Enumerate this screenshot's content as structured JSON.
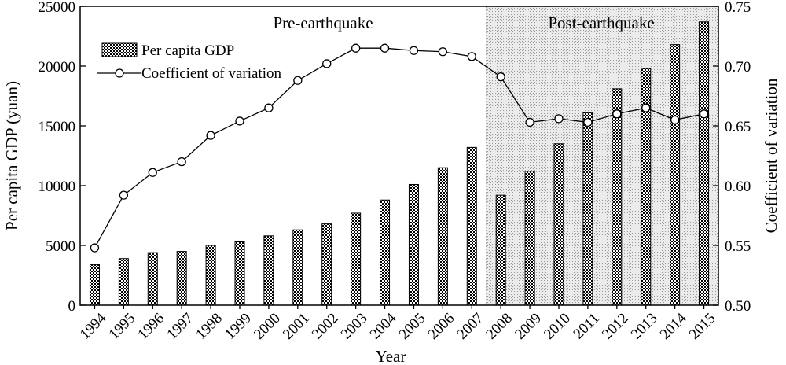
{
  "chart_data": {
    "type": "bar",
    "title": "",
    "xlabel": "Year",
    "ylabel": "Per capita GDP (yuan)",
    "y2label": "Coefficient of variation",
    "ylim": [
      0,
      25000
    ],
    "y2lim": [
      0.5,
      0.75
    ],
    "yticks": [
      "0",
      "5000",
      "10000",
      "15000",
      "20000",
      "25000"
    ],
    "y2ticks": [
      "0.50",
      "0.55",
      "0.60",
      "0.65",
      "0.70",
      "0.75"
    ],
    "categories": [
      "1994",
      "1995",
      "1996",
      "1997",
      "1998",
      "1999",
      "2000",
      "2001",
      "2002",
      "2003",
      "2004",
      "2005",
      "2006",
      "2007",
      "2008",
      "2009",
      "2010",
      "2011",
      "2012",
      "2013",
      "2014",
      "2015"
    ],
    "series": [
      {
        "name": "Per capita GDP",
        "kind": "bar",
        "axis": "left",
        "values": [
          3400,
          3900,
          4400,
          4500,
          5000,
          5300,
          5800,
          6300,
          6800,
          7700,
          8800,
          10100,
          11500,
          13200,
          9200,
          11200,
          13500,
          16100,
          18100,
          19800,
          21800,
          23700
        ]
      },
      {
        "name": "Coefficient of variation",
        "kind": "line",
        "axis": "right",
        "values": [
          0.548,
          0.592,
          0.611,
          0.62,
          0.642,
          0.654,
          0.665,
          0.688,
          0.702,
          0.715,
          0.715,
          0.713,
          0.712,
          0.708,
          0.691,
          0.653,
          0.656,
          0.653,
          0.66,
          0.665,
          0.655,
          0.66
        ]
      }
    ],
    "regions": [
      {
        "label": "Pre-earthquake",
        "from": "1994",
        "to": "2007"
      },
      {
        "label": "Post-earthquake",
        "from": "2008",
        "to": "2015",
        "shaded": true
      }
    ],
    "legend": {
      "position": "top-left"
    },
    "grid": false
  }
}
